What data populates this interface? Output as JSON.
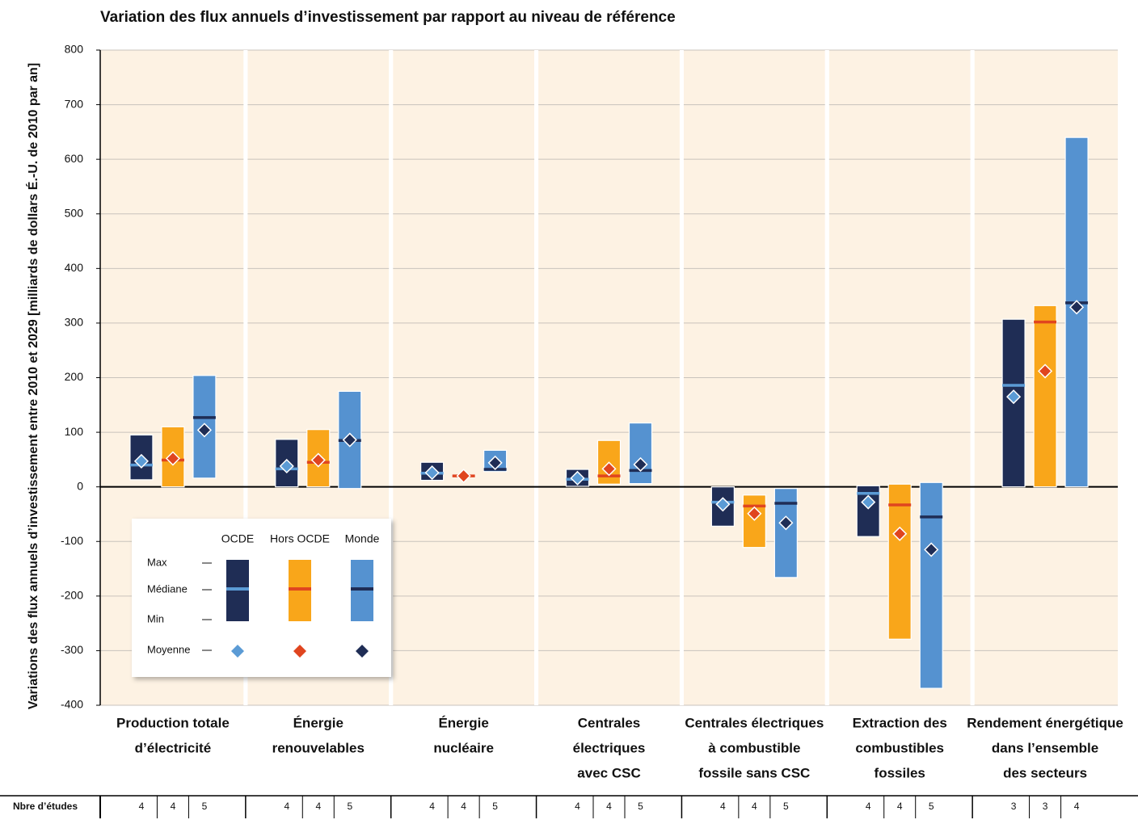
{
  "chart_data": {
    "type": "range",
    "title": "Variation des flux annuels d’investissement par rapport au niveau de référence",
    "y_label": "Variations des flux annuels d’investissement entre 2010 et 2029 [milliards de dollars É.-U. de 2010 par an]",
    "categories": [
      [
        "Production totale",
        "d’électricité"
      ],
      [
        "Énergie",
        "renouvelables"
      ],
      [
        "Énergie",
        "nucléaire"
      ],
      [
        "Centrales",
        "électriques",
        "avec CSC"
      ],
      [
        "Centrales électriques",
        "à combustible",
        "fossile sans CSC"
      ],
      [
        "Extraction des",
        "combustibles",
        "fossiles"
      ],
      [
        "Rendement énergétique",
        "dans l’ensemble",
        "des secteurs"
      ]
    ],
    "series": [
      {
        "name": "OCDE",
        "color": "#1f2d55",
        "median_color": "#5b9bd5",
        "mean_color": "#5b9bd5",
        "max": [
          95,
          87,
          45,
          32,
          0,
          2,
          307
        ],
        "min": [
          13,
          0,
          12,
          1,
          -72,
          -91,
          0
        ],
        "median": [
          40,
          33,
          25,
          14,
          -28,
          -12,
          186
        ],
        "mean": [
          47,
          38,
          26,
          16,
          -32,
          -28,
          165
        ],
        "studies": [
          4,
          4,
          4,
          4,
          4,
          4,
          3
        ]
      },
      {
        "name": "Hors OCDE",
        "color": "#f9a61a",
        "median_color": "#e0451f",
        "mean_color": "#e0451f",
        "max": [
          110,
          105,
          20,
          85,
          -15,
          5,
          332
        ],
        "min": [
          0,
          0,
          20,
          5,
          -111,
          -279,
          0
        ],
        "median": [
          49,
          45,
          20,
          20,
          -35,
          -33,
          302
        ],
        "mean": [
          52,
          49,
          20,
          33,
          -49,
          -86,
          212
        ],
        "studies": [
          4,
          4,
          4,
          4,
          4,
          4,
          3
        ]
      },
      {
        "name": "Monde",
        "color": "#5592d0",
        "median_color": "#1f2d55",
        "mean_color": "#1f2d55",
        "max": [
          204,
          175,
          67,
          117,
          -3,
          8,
          640
        ],
        "min": [
          16,
          -3,
          28,
          6,
          -166,
          -369,
          0
        ],
        "median": [
          127,
          85,
          32,
          30,
          -30,
          -55,
          337
        ],
        "mean": [
          104,
          86,
          44,
          41,
          -66,
          -115,
          329
        ],
        "studies": [
          5,
          5,
          5,
          5,
          5,
          5,
          4
        ]
      }
    ],
    "ylim": [
      -400,
      800
    ],
    "yticks": [
      -400,
      -300,
      -200,
      -100,
      0,
      100,
      200,
      300,
      400,
      500,
      600,
      700,
      800
    ],
    "grid": true,
    "legend_labels": [
      "Max",
      "Médiane",
      "Min",
      "Moyenne"
    ],
    "row_label": "Nbre d’études"
  }
}
